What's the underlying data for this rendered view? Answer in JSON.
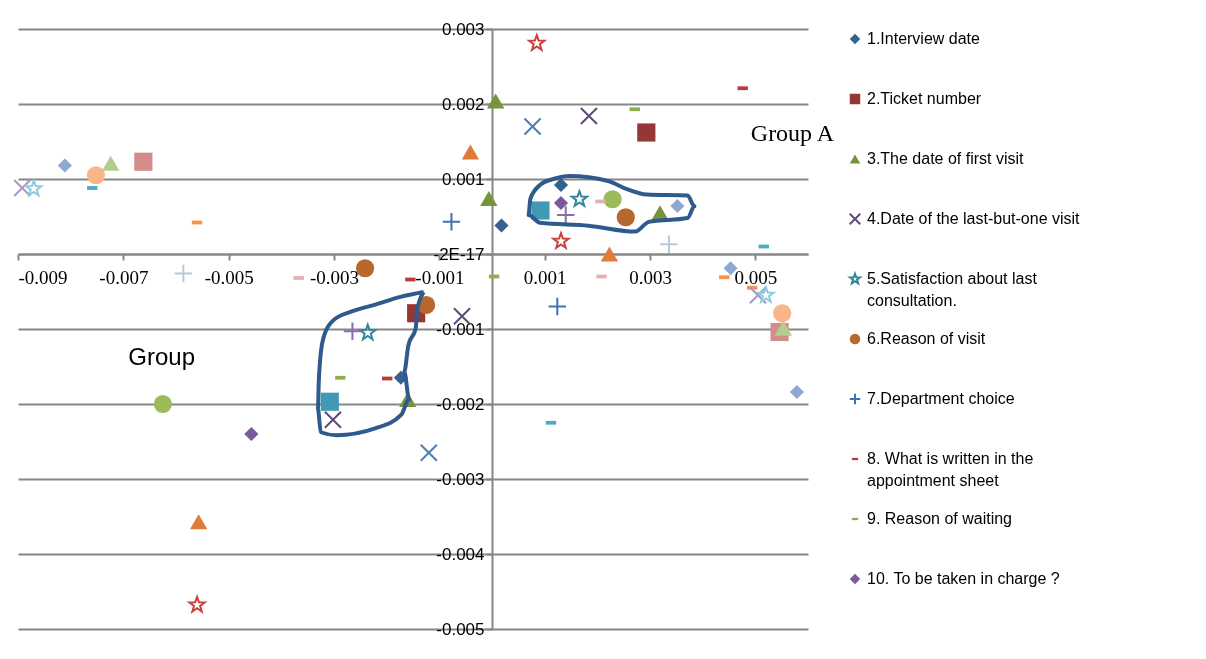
{
  "chart_data": {
    "type": "scatter",
    "xlim": [
      -0.009,
      0.006
    ],
    "xticks": [
      -0.009,
      -0.007,
      -0.005,
      -0.003,
      -0.001,
      0.001,
      0.003,
      0.005
    ],
    "ylim": [
      -0.005,
      0.003
    ],
    "yticks": [
      -0.005,
      -0.004,
      -0.003,
      -0.002,
      -0.001,
      {
        "value": 0,
        "label": "-2E-17"
      },
      0.001,
      0.002,
      0.003
    ],
    "grid": "y",
    "legend": "right",
    "annotations": [
      "Group A",
      "Group"
    ],
    "series": [
      {
        "name": "1.Interview date",
        "color": "#376092",
        "marker": "diamond",
        "x": [
          0.00131,
          0.00018,
          -0.00173
        ],
        "values": [
          0.00092,
          0.00038,
          -0.00165
        ]
      },
      {
        "name": "2.Ticket number",
        "color": "#953735",
        "marker": "square",
        "x": [
          0.00293,
          -0.00144
        ],
        "values": [
          0.00162,
          -0.00079
        ]
      },
      {
        "name": "3.The date of first visit",
        "color": "#77933c",
        "marker": "triangle",
        "x": [
          7e-05,
          -6e-05,
          0.00319,
          -0.0016
        ],
        "values": [
          0.00204,
          0.00074,
          0.00055,
          -0.00194
        ]
      },
      {
        "name": "4.Date of the last-but-one visit",
        "color": "#604a7b",
        "marker": "cross",
        "x": [
          0.00184,
          -0.00057,
          -0.00302
        ],
        "values": [
          0.00184,
          -0.00083,
          -0.00221
        ]
      },
      {
        "name": "5.Satisfaction about last consultation.",
        "color": "#31859c",
        "marker": "star",
        "x": [
          0.00166,
          -0.00236
        ],
        "values": [
          0.00073,
          -0.00105
        ]
      },
      {
        "name": "6.Reason of visit",
        "color": "#b8672e",
        "marker": "circle",
        "x": [
          0.00254,
          -0.00241,
          -0.00125
        ],
        "values": [
          0.00049,
          -0.00019,
          -0.00068
        ]
      },
      {
        "name": "7.Department choice",
        "color": "#3f70b3",
        "marker": "plus",
        "x": [
          -0.00077,
          0.00124
        ],
        "values": [
          0.00043,
          -0.0007
        ]
      },
      {
        "name": "8. What is written in the appointment sheet",
        "color": "#b83c3a",
        "x": [
          0.00476,
          -0.00155,
          -0.00199
        ],
        "values": [
          0.00221,
          -0.00034,
          -0.00166
        ]
      },
      {
        "name": "9. Reason of waiting",
        "color": "#8db04f",
        "x": [
          0.00271,
          4e-05,
          -0.00288
        ],
        "values": [
          0.00193,
          -0.0003,
          -0.00165
        ]
      },
      {
        "name": "10. To be taken in charge ?",
        "color": "#7a5a9c",
        "marker": "diamond",
        "x": [
          0.00131,
          -0.00457
        ],
        "values": [
          0.00068,
          -0.0024
        ]
      },
      {
        "color": "#4299b5",
        "marker": "square",
        "x": [
          0.00092,
          -0.00308
        ],
        "values": [
          0.00058,
          -0.00197
        ]
      },
      {
        "color": "#e07b39",
        "marker": "triangle",
        "x": [
          -0.00041,
          0.00223,
          -0.00557
        ],
        "values": [
          0.00136,
          0.0,
          -0.00357
        ]
      },
      {
        "color": "#4a7ebf",
        "marker": "cross",
        "x": [
          0.00077,
          -0.0012
        ],
        "values": [
          0.0017,
          -0.00265
        ]
      },
      {
        "color": "#c8413e",
        "marker": "star",
        "x": [
          0.00085,
          0.00131,
          -0.0056
        ],
        "values": [
          0.00281,
          0.00017,
          -0.00468
        ]
      },
      {
        "color": "#9bbb59",
        "marker": "circle",
        "x": [
          0.00229,
          -0.00625
        ],
        "values": [
          0.00073,
          -0.002
        ]
      },
      {
        "color": "#8a6cb0",
        "marker": "plus",
        "x": [
          0.0014,
          -0.00265
        ],
        "values": [
          0.00052,
          -0.00103
        ]
      },
      {
        "color": "#4bacc6",
        "x": [
          -0.00759,
          0.00516,
          0.00112
        ],
        "values": [
          0.00088,
          0.0001,
          -0.00225
        ]
      },
      {
        "color": "#f79646",
        "x": [
          -0.0056,
          0.00441,
          0.00494
        ],
        "values": [
          0.00042,
          -0.00031,
          -0.00045
        ]
      },
      {
        "color": "#8ea9d1",
        "marker": "diamond",
        "x": [
          -0.00811,
          0.00352,
          0.00453,
          0.00579
        ],
        "values": [
          0.00118,
          0.00064,
          -0.00019,
          -0.00184
        ]
      },
      {
        "color": "#d48c8a",
        "marker": "square",
        "x": [
          -0.00662,
          0.00546
        ],
        "values": [
          0.00123,
          -0.00104
        ]
      },
      {
        "color": "#b3cc8f",
        "marker": "triangle",
        "x": [
          -0.00724,
          0.00553
        ],
        "values": [
          0.00121,
          -0.00099
        ]
      },
      {
        "color": "#ab97c4",
        "marker": "cross",
        "x": [
          -0.00892,
          0.00505
        ],
        "values": [
          0.00088,
          -0.00055
        ]
      },
      {
        "color": "#8ccbdc",
        "marker": "star",
        "x": [
          -0.0087,
          0.0052
        ],
        "values": [
          0.00087,
          -0.00055
        ]
      },
      {
        "color": "#f8b58a",
        "marker": "circle",
        "x": [
          -0.00752,
          0.00551
        ],
        "values": [
          0.00105,
          -0.00079
        ]
      },
      {
        "color": "#b9c8e2",
        "marker": "plus",
        "x": [
          -0.00586,
          0.00336
        ],
        "values": [
          -0.00026,
          0.00013
        ]
      },
      {
        "color": "#e3b1b0",
        "x": [
          -0.00367,
          0.00206,
          0.00208
        ],
        "values": [
          -0.00032,
          0.0007,
          -0.0003
        ]
      }
    ]
  }
}
